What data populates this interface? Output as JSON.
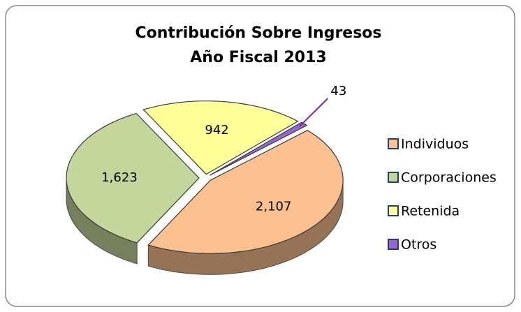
{
  "chart_data": {
    "type": "pie",
    "title": "Contribución Sobre Ingresos",
    "subtitle": "Año Fiscal 2013",
    "categories": [
      "Individuos",
      "Corporaciones",
      "Retenida",
      "Otros"
    ],
    "values": [
      2107,
      1623,
      942,
      43
    ],
    "value_labels": [
      "2,107",
      "1,623",
      "942",
      "43"
    ],
    "colors": [
      "#fac090",
      "#c3d69b",
      "#ffff99",
      "#9966cc"
    ],
    "legend": "right"
  }
}
